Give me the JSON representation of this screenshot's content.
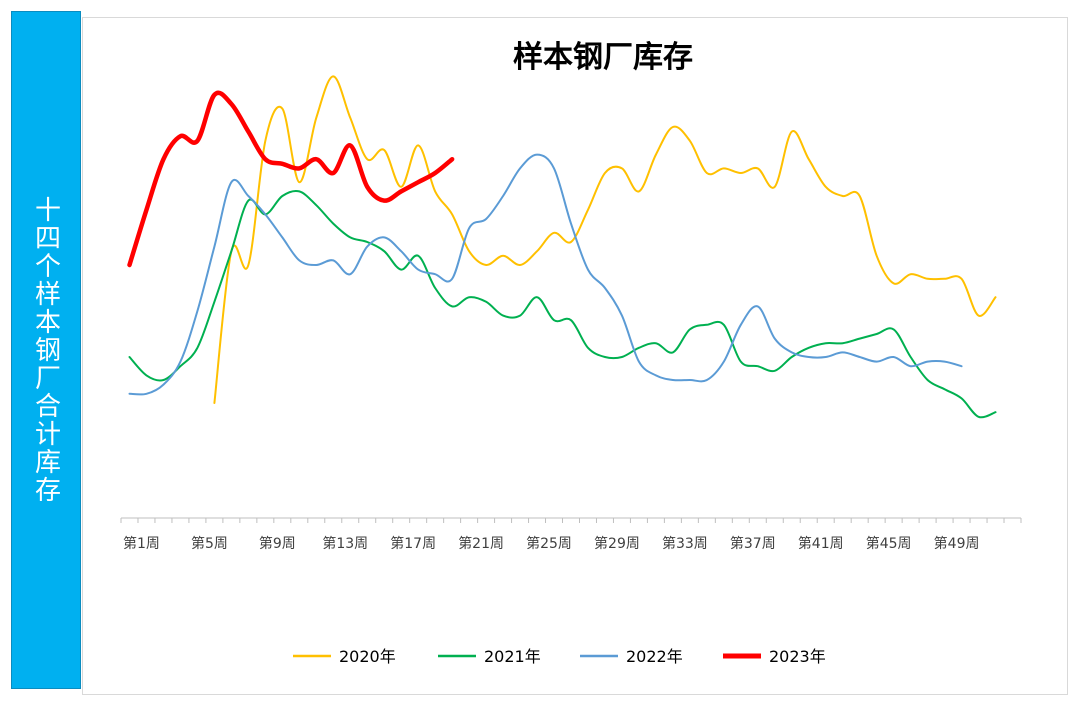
{
  "side_label": "十四个样本钢厂合计库存",
  "chart_data": {
    "type": "line",
    "title": "样本钢厂库存",
    "xlabel": "",
    "ylabel": "",
    "categories": [
      "第1周",
      "第2周",
      "第3周",
      "第4周",
      "第5周",
      "第6周",
      "第7周",
      "第8周",
      "第9周",
      "第10周",
      "第11周",
      "第12周",
      "第13周",
      "第14周",
      "第15周",
      "第16周",
      "第17周",
      "第18周",
      "第19周",
      "第20周",
      "第21周",
      "第22周",
      "第23周",
      "第24周",
      "第25周",
      "第26周",
      "第27周",
      "第28周",
      "第29周",
      "第30周",
      "第31周",
      "第32周",
      "第33周",
      "第34周",
      "第35周",
      "第36周",
      "第37周",
      "第38周",
      "第39周",
      "第40周",
      "第41周",
      "第42周",
      "第43周",
      "第44周",
      "第45周",
      "第46周",
      "第47周",
      "第48周",
      "第49周",
      "第50周",
      "第51周",
      "第52周",
      "第53周"
    ],
    "tick_labels": [
      "第1周",
      "第5周",
      "第9周",
      "第13周",
      "第17周",
      "第21周",
      "第25周",
      "第29周",
      "第33周",
      "第37周",
      "第41周",
      "第45周",
      "第49周"
    ],
    "ylim": [
      0,
      100
    ],
    "grid": false,
    "legend_position": "bottom",
    "series": [
      {
        "name": "2020年",
        "color": "#ffc000",
        "width": 2,
        "values": [
          null,
          null,
          null,
          null,
          null,
          25,
          58,
          55,
          82,
          89,
          73,
          87,
          96,
          87,
          78,
          80,
          72,
          81,
          71,
          66,
          58,
          55,
          57,
          55,
          58,
          62,
          60,
          67,
          75,
          76,
          71,
          79,
          85,
          82,
          75,
          76,
          75,
          76,
          72,
          84,
          78,
          72,
          70,
          70,
          57,
          51,
          53,
          52,
          52,
          52,
          44,
          48,
          null
        ]
      },
      {
        "name": "2021年",
        "color": "#00b050",
        "width": 2,
        "values": [
          35,
          31,
          30,
          33,
          37,
          47,
          58,
          69,
          66,
          70,
          71,
          68,
          64,
          61,
          60,
          58,
          54,
          57,
          50,
          46,
          48,
          47,
          44,
          44,
          48,
          43,
          43,
          37,
          35,
          35,
          37,
          38,
          36,
          41,
          42,
          42,
          34,
          33,
          32,
          35,
          37,
          38,
          38,
          39,
          40,
          41,
          35,
          30,
          28,
          26,
          22,
          23,
          null
        ]
      },
      {
        "name": "2022年",
        "color": "#5b9bd5",
        "width": 2,
        "values": [
          27,
          27,
          29,
          34,
          45,
          59,
          73,
          70,
          66,
          61,
          56,
          55,
          56,
          53,
          59,
          61,
          58,
          54,
          53,
          52,
          63,
          65,
          70,
          76,
          79,
          76,
          64,
          54,
          50,
          44,
          34,
          31,
          30,
          30,
          30,
          34,
          42,
          46,
          39,
          36,
          35,
          35,
          36,
          35,
          34,
          35,
          33,
          34,
          34,
          33,
          null,
          null,
          null
        ]
      },
      {
        "name": "2023年",
        "color": "#ff0000",
        "width": 4.5,
        "values": [
          55,
          67,
          78,
          83,
          82,
          92,
          90,
          84,
          78,
          77,
          76,
          78,
          75,
          81,
          72,
          69,
          71,
          73,
          75,
          78,
          null,
          null,
          null,
          null,
          null,
          null,
          null,
          null,
          null,
          null,
          null,
          null,
          null,
          null,
          null,
          null,
          null,
          null,
          null,
          null,
          null,
          null,
          null,
          null,
          null,
          null,
          null,
          null,
          null,
          null,
          null,
          null,
          null
        ]
      }
    ]
  }
}
